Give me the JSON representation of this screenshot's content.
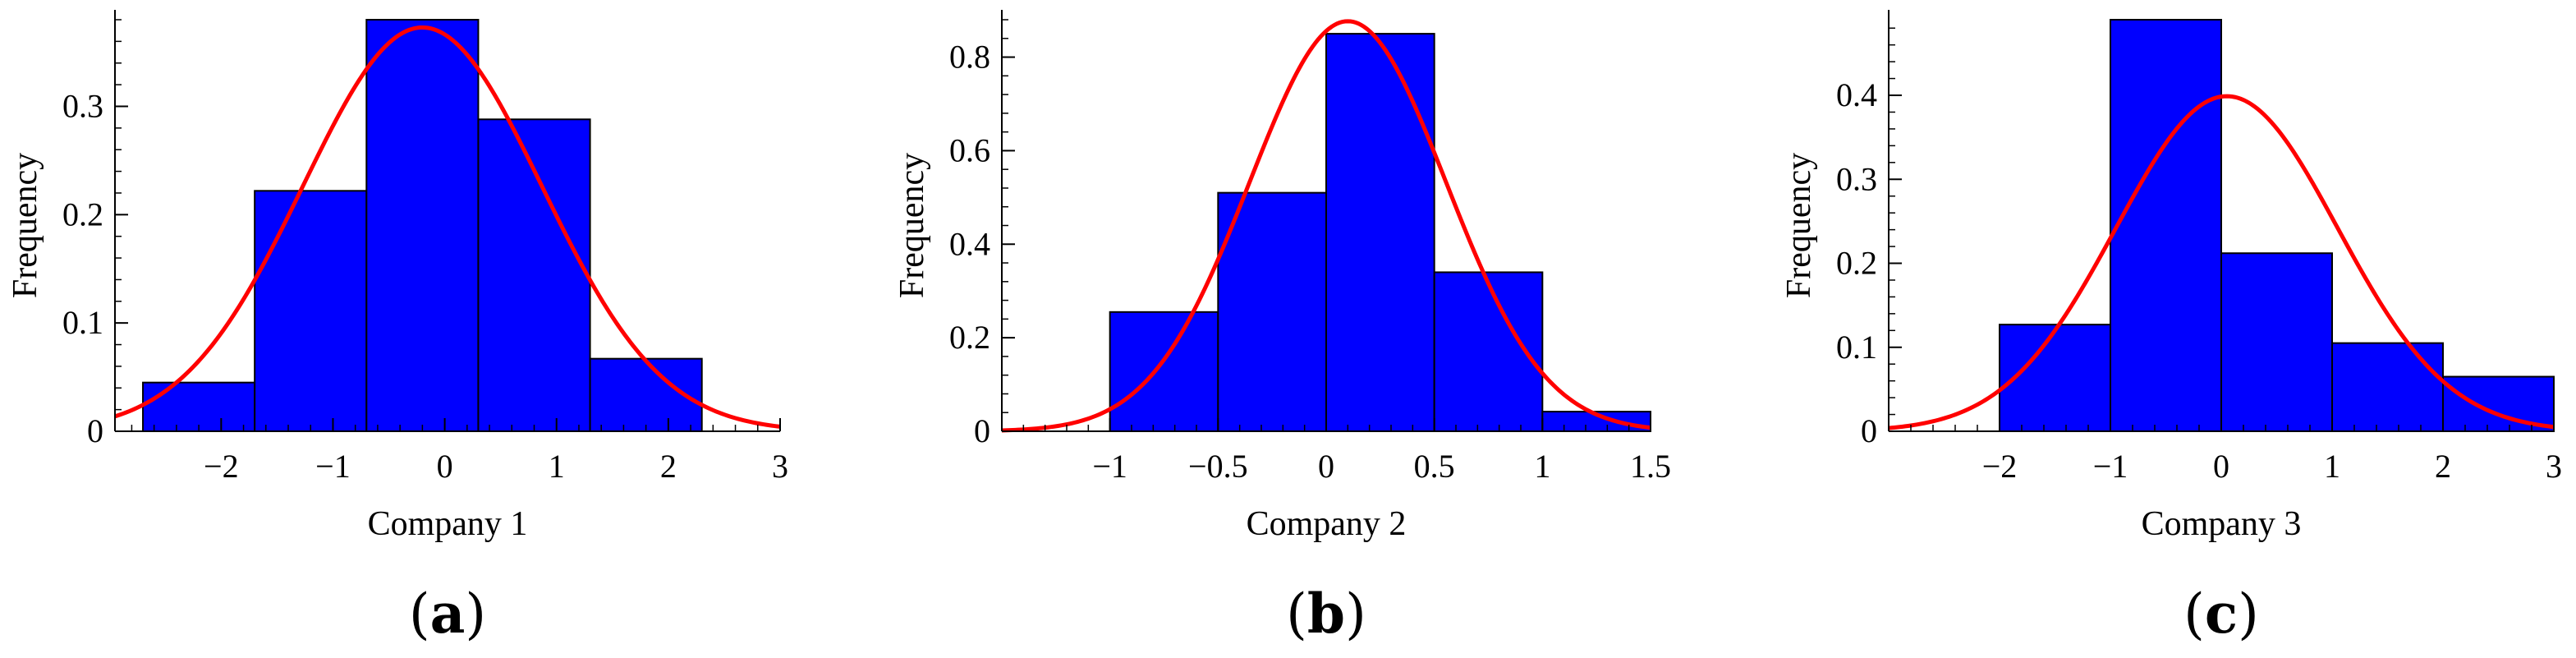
{
  "colors": {
    "bar_fill": "#0000ff",
    "bar_stroke": "#000000",
    "curve": "#ff0000",
    "axis": "#000000"
  },
  "chart_data": [
    {
      "type": "bar",
      "panel_label": "a",
      "xlabel": "Company 1",
      "ylabel": "Frequency",
      "xlim": [
        -2.95,
        3.0
      ],
      "ylim": [
        0,
        0.38
      ],
      "xticks": [
        -2,
        -1,
        0,
        1,
        2,
        3
      ],
      "xtick_labels": [
        "−2",
        "−1",
        "0",
        "1",
        "2",
        "3"
      ],
      "yticks": [
        0,
        0.1,
        0.2,
        0.3
      ],
      "ytick_labels": [
        "0",
        "0.1",
        "0.2",
        "0.3"
      ],
      "bins": [
        {
          "x0": -2.7,
          "x1": -1.7,
          "value": 0.045
        },
        {
          "x0": -1.7,
          "x1": -0.7,
          "value": 0.222
        },
        {
          "x0": -0.7,
          "x1": 0.3,
          "value": 0.38
        },
        {
          "x0": 0.3,
          "x1": 1.3,
          "value": 0.288
        },
        {
          "x0": 1.3,
          "x1": 2.3,
          "value": 0.067
        }
      ],
      "curve": {
        "type": "normal_pdf",
        "mean": -0.2,
        "sd": 1.07
      }
    },
    {
      "type": "bar",
      "panel_label": "b",
      "xlabel": "Company 2",
      "ylabel": "Frequency",
      "xlim": [
        -1.5,
        1.5
      ],
      "ylim": [
        0,
        0.88
      ],
      "xticks": [
        -1,
        -0.5,
        0,
        0.5,
        1,
        1.5
      ],
      "xtick_labels": [
        "−1",
        "−0.5",
        "0",
        "0.5",
        "1",
        "1.5"
      ],
      "yticks": [
        0,
        0.2,
        0.4,
        0.6,
        0.8
      ],
      "ytick_labels": [
        "0",
        "0.2",
        "0.4",
        "0.6",
        "0.8"
      ],
      "bins": [
        {
          "x0": -1.0,
          "x1": -0.5,
          "value": 0.255
        },
        {
          "x0": -0.5,
          "x1": 0.0,
          "value": 0.51
        },
        {
          "x0": 0.0,
          "x1": 0.5,
          "value": 0.85
        },
        {
          "x0": 0.5,
          "x1": 1.0,
          "value": 0.34
        },
        {
          "x0": 1.0,
          "x1": 1.5,
          "value": 0.042
        }
      ],
      "curve": {
        "type": "normal_pdf",
        "mean": 0.1,
        "sd": 0.455
      }
    },
    {
      "type": "bar",
      "panel_label": "c",
      "xlabel": "Company 3",
      "ylabel": "Frequency",
      "xlim": [
        -3.0,
        3.0
      ],
      "ylim": [
        0,
        0.49
      ],
      "xticks": [
        -2,
        -1,
        0,
        1,
        2,
        3
      ],
      "xtick_labels": [
        "−2",
        "−1",
        "0",
        "1",
        "2",
        "3"
      ],
      "yticks": [
        0,
        0.1,
        0.2,
        0.3,
        0.4
      ],
      "ytick_labels": [
        "0",
        "0.1",
        "0.2",
        "0.3",
        "0.4"
      ],
      "bins": [
        {
          "x0": -2.0,
          "x1": -1.0,
          "value": 0.127
        },
        {
          "x0": -1.0,
          "x1": 0.0,
          "value": 0.49
        },
        {
          "x0": 0.0,
          "x1": 1.0,
          "value": 0.212
        },
        {
          "x0": 1.0,
          "x1": 2.0,
          "value": 0.105
        },
        {
          "x0": 2.0,
          "x1": 3.0,
          "value": 0.065
        }
      ],
      "curve": {
        "type": "normal_pdf",
        "mean": 0.05,
        "sd": 1.0
      }
    }
  ]
}
